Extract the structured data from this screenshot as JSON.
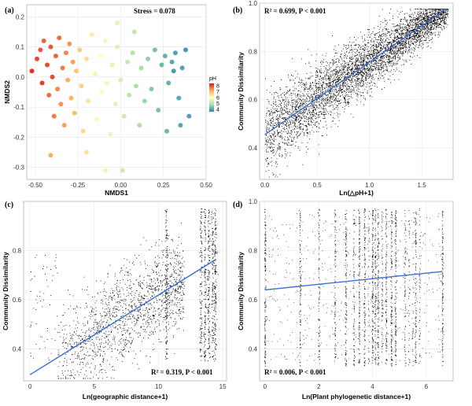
{
  "chart_data": [
    {
      "panel": "(a)",
      "type": "scatter",
      "title": "",
      "xlabel": "NMDS1",
      "ylabel": "NMDS2",
      "xlim": [
        -0.55,
        0.5
      ],
      "ylim": [
        -0.34,
        0.24
      ],
      "xticks": [
        "-0.50",
        "-0.25",
        "0.00",
        "0.25",
        "0.50"
      ],
      "xtick_values": [
        -0.5,
        -0.25,
        0,
        0.25,
        0.5
      ],
      "yticks": [
        "-0.3",
        "-0.2",
        "-0.1",
        "0.0",
        "0.1",
        "0.2"
      ],
      "ytick_values": [
        -0.3,
        -0.2,
        -0.1,
        0.0,
        0.1,
        0.2
      ],
      "annotation": "Stress = 0.078",
      "legend": {
        "title": "pH",
        "labels": [
          "8",
          "7",
          "6",
          "5",
          "4"
        ],
        "values": [
          8,
          7,
          6,
          5,
          4
        ],
        "range": [
          3.6,
          8.4
        ],
        "placement": "right"
      },
      "colormap": [
        "#2b83ba",
        "#abdda4",
        "#ffffbf",
        "#fdae61",
        "#d7191c"
      ],
      "grid": true,
      "points": [
        [
          -0.52,
          0.02,
          8.2
        ],
        [
          -0.49,
          0.06,
          8.0
        ],
        [
          -0.47,
          0.09,
          7.9
        ],
        [
          -0.46,
          -0.02,
          8.1
        ],
        [
          -0.45,
          0.12,
          7.8
        ],
        [
          -0.43,
          0.04,
          8.0
        ],
        [
          -0.42,
          -0.06,
          7.7
        ],
        [
          -0.41,
          0.1,
          7.9
        ],
        [
          -0.4,
          0.0,
          8.0
        ],
        [
          -0.39,
          -0.13,
          7.6
        ],
        [
          -0.38,
          0.07,
          7.8
        ],
        [
          -0.37,
          -0.04,
          7.5
        ],
        [
          -0.36,
          0.13,
          7.7
        ],
        [
          -0.35,
          -0.09,
          7.4
        ],
        [
          -0.34,
          0.03,
          7.6
        ],
        [
          -0.33,
          -0.16,
          7.3
        ],
        [
          -0.32,
          0.08,
          7.5
        ],
        [
          -0.31,
          -0.01,
          7.2
        ],
        [
          -0.3,
          0.11,
          7.4
        ],
        [
          -0.29,
          -0.07,
          7.1
        ],
        [
          -0.28,
          0.05,
          7.3
        ],
        [
          -0.27,
          -0.12,
          7.0
        ],
        [
          -0.26,
          0.02,
          6.9
        ],
        [
          -0.41,
          -0.26,
          7.2
        ],
        [
          -0.24,
          0.09,
          6.8
        ],
        [
          -0.23,
          -0.03,
          6.7
        ],
        [
          -0.22,
          -0.18,
          6.6
        ],
        [
          -0.2,
          0.06,
          6.5
        ],
        [
          -0.19,
          -0.08,
          6.4
        ],
        [
          -0.17,
          0.14,
          6.3
        ],
        [
          -0.15,
          0.01,
          6.2
        ],
        [
          -0.14,
          -0.14,
          6.1
        ],
        [
          -0.12,
          0.07,
          6.0
        ],
        [
          -0.11,
          -0.05,
          5.9
        ],
        [
          -0.09,
          0.12,
          5.8
        ],
        [
          -0.08,
          -0.02,
          5.8
        ],
        [
          -0.06,
          -0.19,
          5.7
        ],
        [
          -0.05,
          0.04,
          5.6
        ],
        [
          -0.03,
          -0.09,
          5.6
        ],
        [
          -0.02,
          0.1,
          5.5
        ],
        [
          0.0,
          -0.01,
          5.4
        ],
        [
          0.02,
          -0.13,
          5.3
        ],
        [
          0.04,
          0.05,
          5.2
        ],
        [
          0.05,
          -0.06,
          5.1
        ],
        [
          0.07,
          0.08,
          5.0
        ],
        [
          0.09,
          -0.03,
          4.9
        ],
        [
          0.11,
          -0.16,
          4.9
        ],
        [
          0.12,
          0.03,
          4.8
        ],
        [
          0.14,
          -0.08,
          4.7
        ],
        [
          0.16,
          0.06,
          4.6
        ],
        [
          0.18,
          -0.04,
          4.5
        ],
        [
          0.2,
          0.09,
          4.4
        ],
        [
          0.22,
          -0.11,
          4.4
        ],
        [
          0.24,
          0.04,
          4.3
        ],
        [
          0.26,
          0.07,
          4.2
        ],
        [
          0.28,
          -0.02,
          4.2
        ],
        [
          0.3,
          0.05,
          4.1
        ],
        [
          0.32,
          0.08,
          4.0
        ],
        [
          0.34,
          -0.07,
          4.1
        ],
        [
          0.36,
          0.03,
          4.0
        ],
        [
          0.38,
          0.09,
          3.9
        ],
        [
          0.4,
          -0.13,
          4.0
        ],
        [
          0.27,
          -0.18,
          4.3
        ],
        [
          0.35,
          -0.16,
          4.1
        ],
        [
          0.08,
          0.15,
          5.1
        ],
        [
          -0.02,
          0.18,
          5.6
        ],
        [
          -0.2,
          -0.25,
          6.4
        ],
        [
          -0.09,
          -0.31,
          5.7
        ],
        [
          0.01,
          -0.31,
          5.3
        ],
        [
          0.31,
          0.02,
          3.9
        ]
      ]
    },
    {
      "panel": "(b)",
      "type": "scatter",
      "title": "",
      "xlabel": "Ln(△pH+1)",
      "ylabel": "Community Dissimilarity",
      "xlim": [
        -0.05,
        1.8
      ],
      "ylim": [
        0.27,
        1.0
      ],
      "xticks": [
        "0.0",
        "0.5",
        "1.0",
        "1.5"
      ],
      "xtick_values": [
        0,
        0.5,
        1.0,
        1.5
      ],
      "yticks": [
        "0.4",
        "0.6",
        "0.8",
        "1.0"
      ],
      "ytick_values": [
        0.4,
        0.6,
        0.8,
        1.0
      ],
      "annotation": "R² = 0.699, P < 0.001",
      "fit_line": {
        "x": [
          0,
          1.73
        ],
        "y": [
          0.455,
          0.975
        ]
      },
      "grid": true
    },
    {
      "panel": "(c)",
      "type": "scatter",
      "title": "",
      "xlabel": "Ln(geographic distance+1)",
      "ylabel": "Community Dissimilarity",
      "xlim": [
        -0.5,
        15.3
      ],
      "ylim": [
        0.27,
        1.0
      ],
      "xticks": [
        "0",
        "5",
        "10",
        "15"
      ],
      "xtick_values": [
        0,
        5,
        10,
        15
      ],
      "yticks": [
        "0.4",
        "0.6",
        "0.8"
      ],
      "ytick_values": [
        0.4,
        0.6,
        0.8
      ],
      "annotation": "R² = 0.319, P < 0.001",
      "fit_line": {
        "x": [
          0,
          14.5
        ],
        "y": [
          0.295,
          0.765
        ]
      },
      "grid": true
    },
    {
      "panel": "(d)",
      "type": "scatter",
      "title": "",
      "xlabel": "Ln(Plant phylogenetic distance+1)",
      "ylabel": "Community Dissimilarity",
      "xlim": [
        -0.2,
        7.0
      ],
      "ylim": [
        0.27,
        1.0
      ],
      "xticks": [
        "0",
        "2",
        "4",
        "6"
      ],
      "xtick_values": [
        0,
        2,
        4,
        6
      ],
      "yticks": [
        "0.4",
        "0.6",
        "0.8",
        "1.0"
      ],
      "ytick_values": [
        0.4,
        0.6,
        0.8,
        1.0
      ],
      "annotation": "R² = 0.006, P < 0.001",
      "fit_line": {
        "x": [
          0,
          6.6
        ],
        "y": [
          0.64,
          0.715
        ]
      },
      "column_x": [
        0,
        1.3,
        2.0,
        2.6,
        3.0,
        3.3,
        3.5,
        3.7,
        3.85,
        4.0,
        4.1,
        4.2,
        4.35,
        4.5,
        4.7,
        4.85,
        5.2,
        5.35,
        5.5,
        5.6,
        5.75,
        6.6
      ],
      "grid": true
    }
  ]
}
